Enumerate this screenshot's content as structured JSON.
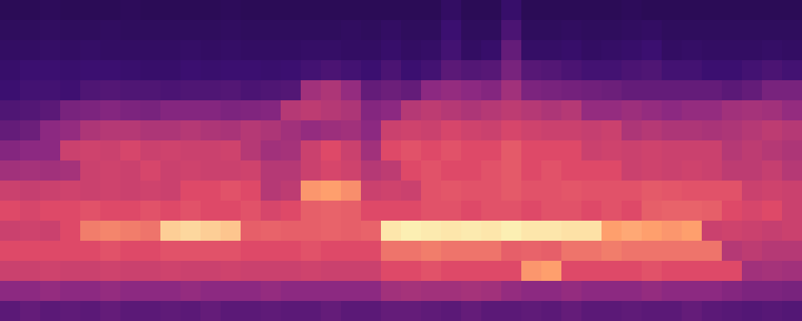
{
  "chart_data": {
    "type": "heatmap",
    "tick_labels": false,
    "xlim": [
      0,
      40
    ],
    "ylim": [
      0,
      16
    ],
    "zlim": [
      0,
      1
    ],
    "colors": [
      "#140730",
      "#3b0f70",
      "#8c2981",
      "#de4968",
      "#fe9f6d",
      "#fcfdbf"
    ],
    "cells": [
      [
        0.12,
        0.12,
        0.13,
        0.12,
        0.12,
        0.12,
        0.13,
        0.12,
        0.12,
        0.12,
        0.12,
        0.13,
        0.12,
        0.12,
        0.12,
        0.12,
        0.12,
        0.12,
        0.12,
        0.12,
        0.12,
        0.12,
        0.16,
        0.12,
        0.12,
        0.18,
        0.12,
        0.12,
        0.12,
        0.12,
        0.12,
        0.13,
        0.12,
        0.12,
        0.12,
        0.12,
        0.12,
        0.12,
        0.12,
        0.12
      ],
      [
        0.14,
        0.14,
        0.15,
        0.14,
        0.14,
        0.15,
        0.14,
        0.14,
        0.14,
        0.14,
        0.14,
        0.15,
        0.14,
        0.14,
        0.14,
        0.14,
        0.14,
        0.15,
        0.14,
        0.16,
        0.14,
        0.14,
        0.2,
        0.14,
        0.14,
        0.24,
        0.14,
        0.14,
        0.15,
        0.14,
        0.14,
        0.15,
        0.16,
        0.14,
        0.14,
        0.14,
        0.14,
        0.14,
        0.14,
        0.14
      ],
      [
        0.16,
        0.16,
        0.17,
        0.16,
        0.17,
        0.16,
        0.16,
        0.16,
        0.16,
        0.17,
        0.16,
        0.17,
        0.16,
        0.16,
        0.16,
        0.17,
        0.17,
        0.16,
        0.16,
        0.18,
        0.16,
        0.17,
        0.22,
        0.16,
        0.18,
        0.3,
        0.17,
        0.17,
        0.18,
        0.16,
        0.17,
        0.18,
        0.2,
        0.16,
        0.17,
        0.16,
        0.16,
        0.16,
        0.17,
        0.16
      ],
      [
        0.18,
        0.2,
        0.2,
        0.19,
        0.2,
        0.2,
        0.19,
        0.18,
        0.18,
        0.2,
        0.19,
        0.2,
        0.2,
        0.19,
        0.2,
        0.22,
        0.24,
        0.22,
        0.2,
        0.24,
        0.2,
        0.22,
        0.28,
        0.26,
        0.27,
        0.35,
        0.27,
        0.26,
        0.24,
        0.22,
        0.22,
        0.24,
        0.25,
        0.22,
        0.22,
        0.2,
        0.2,
        0.22,
        0.24,
        0.22
      ],
      [
        0.2,
        0.22,
        0.22,
        0.21,
        0.25,
        0.26,
        0.25,
        0.25,
        0.24,
        0.25,
        0.25,
        0.26,
        0.24,
        0.25,
        0.26,
        0.45,
        0.48,
        0.42,
        0.3,
        0.32,
        0.3,
        0.4,
        0.42,
        0.4,
        0.38,
        0.45,
        0.36,
        0.35,
        0.34,
        0.33,
        0.32,
        0.3,
        0.3,
        0.3,
        0.3,
        0.3,
        0.28,
        0.3,
        0.35,
        0.35
      ],
      [
        0.25,
        0.26,
        0.28,
        0.35,
        0.36,
        0.38,
        0.36,
        0.35,
        0.38,
        0.38,
        0.38,
        0.36,
        0.37,
        0.38,
        0.5,
        0.52,
        0.5,
        0.48,
        0.38,
        0.4,
        0.5,
        0.52,
        0.5,
        0.48,
        0.5,
        0.52,
        0.5,
        0.48,
        0.5,
        0.42,
        0.42,
        0.44,
        0.42,
        0.4,
        0.42,
        0.42,
        0.45,
        0.46,
        0.45,
        0.42
      ],
      [
        0.3,
        0.32,
        0.4,
        0.42,
        0.48,
        0.5,
        0.5,
        0.48,
        0.48,
        0.5,
        0.48,
        0.47,
        0.5,
        0.48,
        0.45,
        0.42,
        0.44,
        0.45,
        0.4,
        0.55,
        0.56,
        0.55,
        0.58,
        0.56,
        0.55,
        0.58,
        0.56,
        0.55,
        0.55,
        0.54,
        0.55,
        0.48,
        0.5,
        0.48,
        0.48,
        0.47,
        0.48,
        0.5,
        0.52,
        0.5
      ],
      [
        0.38,
        0.4,
        0.4,
        0.55,
        0.56,
        0.55,
        0.58,
        0.55,
        0.56,
        0.55,
        0.55,
        0.56,
        0.5,
        0.45,
        0.46,
        0.55,
        0.6,
        0.55,
        0.45,
        0.6,
        0.62,
        0.6,
        0.62,
        0.6,
        0.6,
        0.64,
        0.6,
        0.6,
        0.6,
        0.55,
        0.56,
        0.55,
        0.56,
        0.55,
        0.55,
        0.55,
        0.5,
        0.52,
        0.5,
        0.48
      ],
      [
        0.45,
        0.46,
        0.45,
        0.46,
        0.55,
        0.56,
        0.55,
        0.58,
        0.55,
        0.56,
        0.55,
        0.55,
        0.56,
        0.5,
        0.5,
        0.55,
        0.58,
        0.56,
        0.5,
        0.52,
        0.6,
        0.62,
        0.6,
        0.6,
        0.62,
        0.64,
        0.6,
        0.62,
        0.6,
        0.6,
        0.6,
        0.55,
        0.56,
        0.55,
        0.56,
        0.55,
        0.52,
        0.52,
        0.54,
        0.5
      ],
      [
        0.55,
        0.54,
        0.55,
        0.56,
        0.55,
        0.56,
        0.55,
        0.56,
        0.55,
        0.6,
        0.6,
        0.62,
        0.6,
        0.5,
        0.52,
        0.78,
        0.8,
        0.76,
        0.55,
        0.56,
        0.55,
        0.62,
        0.63,
        0.62,
        0.62,
        0.64,
        0.62,
        0.62,
        0.63,
        0.62,
        0.62,
        0.62,
        0.64,
        0.63,
        0.62,
        0.62,
        0.62,
        0.55,
        0.56,
        0.55
      ],
      [
        0.6,
        0.58,
        0.6,
        0.6,
        0.62,
        0.6,
        0.6,
        0.62,
        0.6,
        0.62,
        0.6,
        0.6,
        0.62,
        0.58,
        0.6,
        0.65,
        0.66,
        0.65,
        0.6,
        0.6,
        0.6,
        0.62,
        0.62,
        0.6,
        0.62,
        0.62,
        0.6,
        0.62,
        0.62,
        0.6,
        0.62,
        0.6,
        0.65,
        0.66,
        0.66,
        0.65,
        0.6,
        0.58,
        0.6,
        0.55
      ],
      [
        0.55,
        0.56,
        0.55,
        0.6,
        0.72,
        0.74,
        0.72,
        0.7,
        0.9,
        0.92,
        0.9,
        0.88,
        0.65,
        0.66,
        0.65,
        0.65,
        0.66,
        0.65,
        0.66,
        0.95,
        0.97,
        0.96,
        0.95,
        0.96,
        0.95,
        0.97,
        0.95,
        0.95,
        0.94,
        0.94,
        0.8,
        0.82,
        0.8,
        0.78,
        0.8,
        0.55,
        0.56,
        0.55,
        0.54,
        0.55
      ],
      [
        0.6,
        0.6,
        0.6,
        0.6,
        0.6,
        0.62,
        0.6,
        0.6,
        0.62,
        0.62,
        0.62,
        0.62,
        0.6,
        0.6,
        0.6,
        0.62,
        0.6,
        0.6,
        0.6,
        0.7,
        0.7,
        0.72,
        0.7,
        0.7,
        0.7,
        0.65,
        0.66,
        0.65,
        0.7,
        0.7,
        0.72,
        0.7,
        0.7,
        0.7,
        0.7,
        0.7,
        0.5,
        0.52,
        0.5,
        0.5
      ],
      [
        0.55,
        0.55,
        0.56,
        0.55,
        0.55,
        0.56,
        0.55,
        0.55,
        0.56,
        0.55,
        0.55,
        0.56,
        0.55,
        0.55,
        0.55,
        0.56,
        0.55,
        0.55,
        0.55,
        0.6,
        0.6,
        0.62,
        0.6,
        0.6,
        0.6,
        0.6,
        0.78,
        0.8,
        0.6,
        0.6,
        0.6,
        0.6,
        0.62,
        0.6,
        0.6,
        0.6,
        0.6,
        0.45,
        0.46,
        0.45
      ],
      [
        0.4,
        0.4,
        0.42,
        0.4,
        0.4,
        0.42,
        0.4,
        0.4,
        0.4,
        0.42,
        0.4,
        0.4,
        0.4,
        0.42,
        0.4,
        0.4,
        0.4,
        0.4,
        0.4,
        0.45,
        0.46,
        0.45,
        0.45,
        0.46,
        0.45,
        0.42,
        0.4,
        0.4,
        0.42,
        0.4,
        0.4,
        0.4,
        0.42,
        0.4,
        0.4,
        0.4,
        0.38,
        0.36,
        0.36,
        0.35
      ],
      [
        0.28,
        0.3,
        0.28,
        0.29,
        0.28,
        0.3,
        0.28,
        0.28,
        0.29,
        0.28,
        0.3,
        0.28,
        0.28,
        0.29,
        0.28,
        0.28,
        0.3,
        0.28,
        0.28,
        0.3,
        0.3,
        0.29,
        0.28,
        0.3,
        0.28,
        0.28,
        0.29,
        0.28,
        0.3,
        0.28,
        0.28,
        0.29,
        0.28,
        0.28,
        0.3,
        0.28,
        0.27,
        0.26,
        0.27,
        0.26
      ]
    ]
  }
}
